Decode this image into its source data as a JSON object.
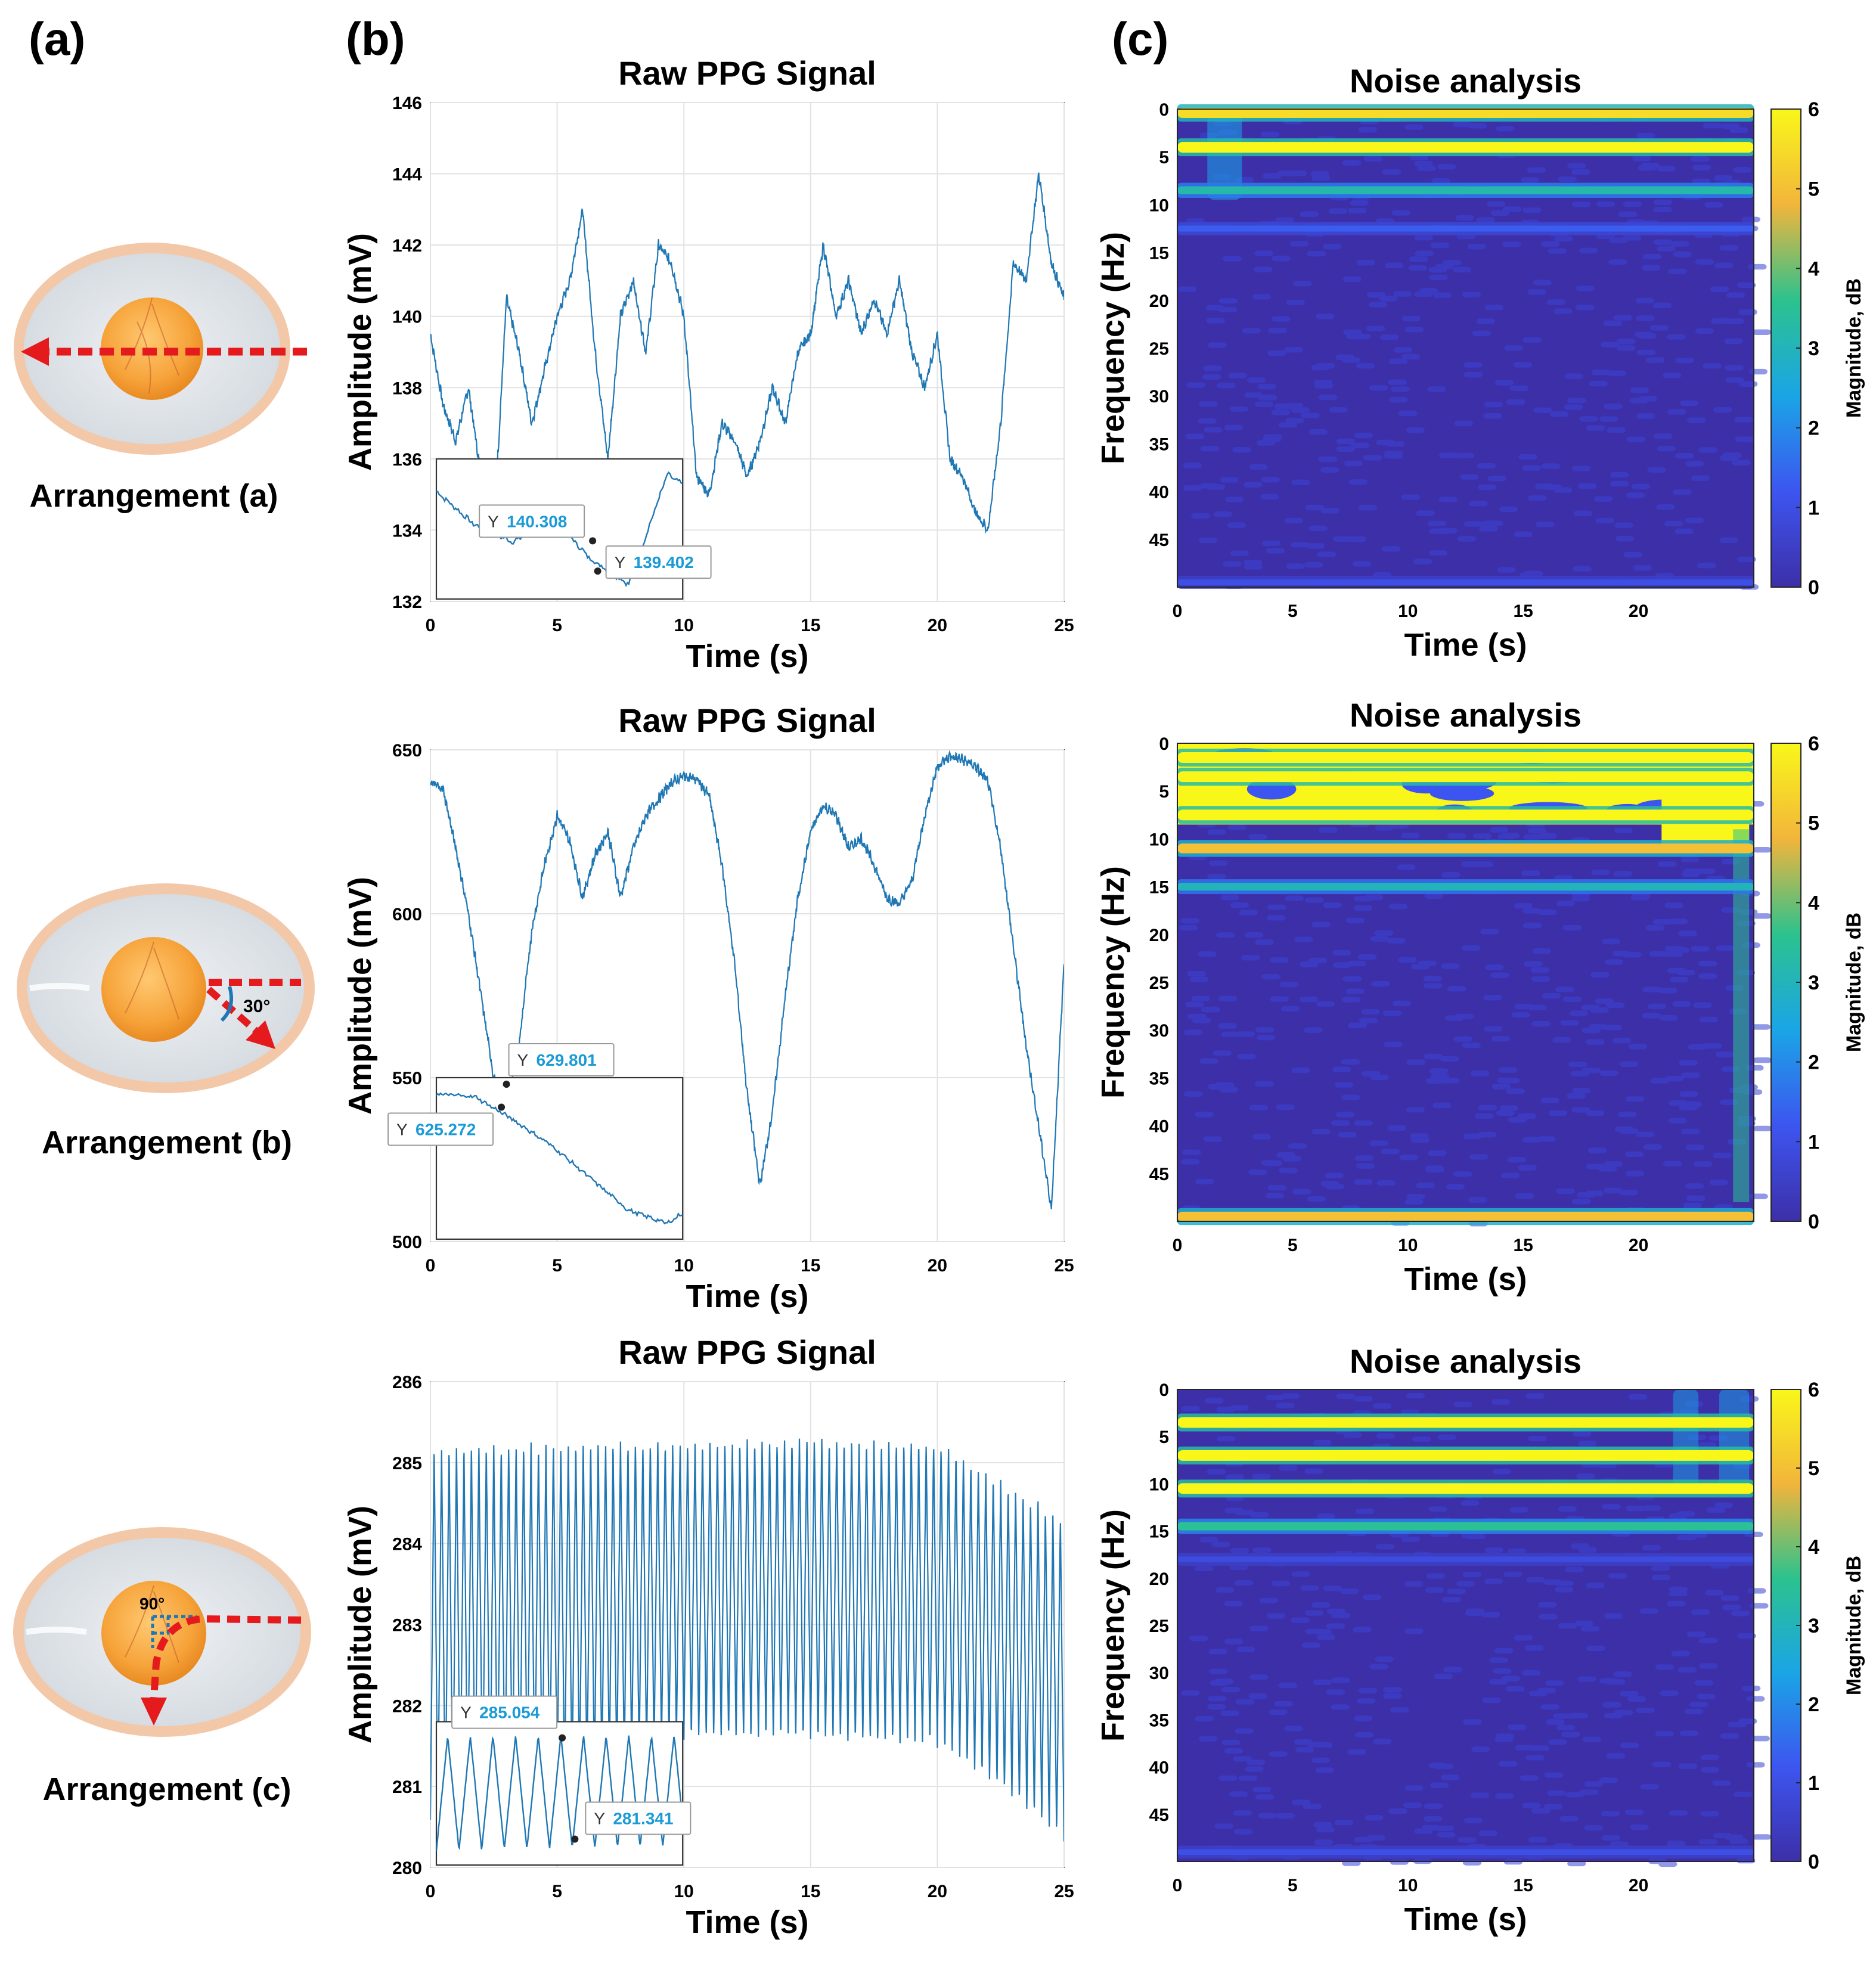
{
  "panel_labels": {
    "a": "(a)",
    "b": "(b)",
    "c": "(c)"
  },
  "arrangements": [
    {
      "label": "Arrangement (a)",
      "angle_label": ""
    },
    {
      "label": "Arrangement (b)",
      "angle_label": "30°"
    },
    {
      "label": "Arrangement (c)",
      "angle_label": "90°"
    }
  ],
  "colors": {
    "signal": "#1f77b4",
    "datatip_value": "#1a9ad6",
    "arrow": "#e41a1c",
    "spec_low": "#3d2fa8",
    "spec_high": "#f9f71a",
    "yolk": "#f6a33a",
    "shell": "#f2c8a8",
    "albumen": "#dfe3e8"
  },
  "chart_data": [
    {
      "type": "line",
      "title": "Raw PPG Signal",
      "xlabel": "Time (s)",
      "ylabel": "Amplitude (mV)",
      "xlim": [
        0,
        25
      ],
      "ylim": [
        132,
        146
      ],
      "xticks": [
        0,
        5,
        10,
        15,
        20,
        25
      ],
      "yticks": [
        132,
        134,
        136,
        138,
        140,
        142,
        144,
        146
      ],
      "grid": true,
      "series": [
        {
          "name": "PPG",
          "x": [
            0,
            0.5,
            1,
            1.5,
            2,
            2.5,
            3,
            3.5,
            4,
            4.5,
            5,
            5.5,
            6,
            6.5,
            7,
            7.5,
            8,
            8.5,
            9,
            9.5,
            10,
            10.5,
            11,
            11.5,
            12,
            12.5,
            13,
            13.5,
            14,
            14.5,
            15,
            15.5,
            16,
            16.5,
            17,
            17.5,
            18,
            18.5,
            19,
            19.5,
            20,
            20.5,
            21,
            21.5,
            22,
            22.5,
            23,
            23.5,
            24,
            24.5,
            25
          ],
          "y": [
            139.5,
            137.5,
            136.5,
            138,
            135.5,
            134,
            140.5,
            139,
            137,
            138.5,
            140,
            141,
            143,
            139,
            136,
            140,
            141,
            139,
            142,
            141.5,
            140,
            135.5,
            135,
            137,
            136.5,
            135.5,
            136.5,
            138,
            137,
            139,
            139.5,
            142,
            140,
            141,
            139.5,
            140.5,
            139.5,
            141,
            139,
            138,
            139.5,
            136,
            135.5,
            134.5,
            134,
            137,
            141.5,
            141,
            144,
            141.5,
            140.5
          ]
        }
      ],
      "inset": {
        "xlim": [
          0,
          10
        ],
        "ylim": [
          132,
          136
        ],
        "x_span_ticks": [
          0,
          10
        ]
      },
      "datatips": [
        {
          "label": "Y",
          "value": "140.308",
          "x": 6.4,
          "y": 133.7
        },
        {
          "label": "Y",
          "value": "139.402",
          "x": 6.6,
          "y": 132.85
        }
      ]
    },
    {
      "type": "line",
      "title": "Raw PPG Signal",
      "xlabel": "Time (s)",
      "ylabel": "Amplitude (mV)",
      "xlim": [
        0,
        25
      ],
      "ylim": [
        500,
        650
      ],
      "xticks": [
        0,
        5,
        10,
        15,
        20,
        25
      ],
      "yticks": [
        500,
        550,
        600,
        650
      ],
      "grid": true,
      "series": [
        {
          "name": "PPG",
          "x": [
            0,
            0.5,
            1,
            1.5,
            2,
            2.5,
            3,
            3.5,
            4,
            4.5,
            5,
            5.5,
            6,
            6.5,
            7,
            7.5,
            8,
            8.5,
            9,
            9.5,
            10,
            10.5,
            11,
            11.5,
            12,
            12.5,
            13,
            13.5,
            14,
            14.5,
            15,
            15.5,
            16,
            16.5,
            17,
            17.5,
            18,
            18.5,
            19,
            19.5,
            20,
            20.5,
            21,
            21.5,
            22,
            22.5,
            23,
            23.5,
            24,
            24.5,
            25
          ],
          "y": [
            640,
            638,
            620,
            600,
            575,
            550,
            540,
            560,
            595,
            615,
            630,
            622,
            605,
            618,
            625,
            605,
            620,
            630,
            635,
            640,
            642,
            641,
            636,
            615,
            585,
            545,
            517,
            540,
            575,
            605,
            625,
            633,
            630,
            620,
            623,
            615,
            605,
            603,
            610,
            630,
            645,
            648,
            647,
            645,
            640,
            620,
            590,
            560,
            535,
            510,
            585
          ]
        }
      ],
      "inset": {
        "xlim": [
          0,
          10
        ],
        "ylim": [
          500,
          550
        ]
      },
      "datatips": [
        {
          "label": "Y",
          "value": "629.801",
          "x": 3.0,
          "y": 548
        },
        {
          "label": "Y",
          "value": "625.272",
          "x": 2.8,
          "y": 541
        }
      ]
    },
    {
      "type": "line",
      "title": "Raw PPG Signal",
      "xlabel": "Time (s)",
      "ylabel": "Amplitude (mV)",
      "xlim": [
        0,
        25
      ],
      "ylim": [
        280,
        286
      ],
      "xticks": [
        0,
        5,
        10,
        15,
        20,
        25
      ],
      "yticks": [
        280,
        281,
        282,
        283,
        284,
        285,
        286
      ],
      "grid": true,
      "oscillation": {
        "frequency_hz": 3.4,
        "duration_s": 25
      },
      "envelope": {
        "t": [
          0,
          5,
          10,
          15,
          20,
          22,
          24,
          25
        ],
        "high": [
          285.2,
          285.25,
          285.25,
          285.3,
          285.25,
          284.9,
          284.5,
          284.3
        ],
        "low": [
          280.6,
          280.9,
          281.6,
          281.6,
          281.5,
          281.1,
          280.6,
          280.3
        ]
      },
      "inset": {
        "xlim": [
          0,
          10
        ],
        "ylim": [
          280,
          281.8
        ]
      },
      "datatips": [
        {
          "label": "Y",
          "value": "285.054",
          "x": 5.2,
          "y": 281.6
        },
        {
          "label": "Y",
          "value": "281.341",
          "x": 5.7,
          "y": 280.35
        }
      ]
    },
    {
      "type": "heatmap",
      "title": "Noise analysis",
      "xlabel": "Time (s)",
      "ylabel": "Frequency (Hz)",
      "xlim": [
        0,
        25
      ],
      "ylim": [
        0,
        50
      ],
      "xticks": [
        0,
        5,
        10,
        15,
        20
      ],
      "yticks": [
        0,
        5,
        10,
        15,
        20,
        25,
        30,
        35,
        40,
        45
      ],
      "colorbar": {
        "label": "Magnitude, dB",
        "min": 0,
        "max": 6,
        "ticks": [
          0,
          1,
          2,
          3,
          4,
          5,
          6
        ]
      },
      "bands": [
        {
          "freq_hz": 0.4,
          "magnitude_db": 5.5
        },
        {
          "freq_hz": 4,
          "magnitude_db": 6
        },
        {
          "freq_hz": 8.5,
          "magnitude_db": 3.2
        },
        {
          "freq_hz": 12.5,
          "magnitude_db": 1.3
        },
        {
          "freq_hz": 49.5,
          "magnitude_db": 1.0
        }
      ]
    },
    {
      "type": "heatmap",
      "title": "Noise analysis",
      "xlabel": "Time (s)",
      "ylabel": "Frequency (Hz)",
      "xlim": [
        0,
        25
      ],
      "ylim": [
        0,
        50
      ],
      "xticks": [
        0,
        5,
        10,
        15,
        20
      ],
      "yticks": [
        0,
        5,
        10,
        15,
        20,
        25,
        30,
        35,
        40,
        45
      ],
      "colorbar": {
        "label": "Magnitude, dB",
        "min": 0,
        "max": 6,
        "ticks": [
          0,
          1,
          2,
          3,
          4,
          5,
          6
        ]
      },
      "bands": [
        {
          "freq_hz": 1.5,
          "magnitude_db": 6
        },
        {
          "freq_hz": 3.5,
          "magnitude_db": 6
        },
        {
          "freq_hz": 7.5,
          "magnitude_db": 6
        },
        {
          "freq_hz": 11,
          "magnitude_db": 5
        },
        {
          "freq_hz": 15,
          "magnitude_db": 3
        },
        {
          "freq_hz": 49.5,
          "magnitude_db": 5
        }
      ]
    },
    {
      "type": "heatmap",
      "title": "Noise analysis",
      "xlabel": "Time (s)",
      "ylabel": "Frequency (Hz)",
      "xlim": [
        0,
        25
      ],
      "ylim": [
        0,
        50
      ],
      "xticks": [
        0,
        5,
        10,
        15,
        20
      ],
      "yticks": [
        0,
        5,
        10,
        15,
        20,
        25,
        30,
        35,
        40,
        45
      ],
      "colorbar": {
        "label": "Magnitude, dB",
        "min": 0,
        "max": 6,
        "ticks": [
          0,
          1,
          2,
          3,
          4,
          5,
          6
        ]
      },
      "bands": [
        {
          "freq_hz": 3.5,
          "magnitude_db": 6
        },
        {
          "freq_hz": 7,
          "magnitude_db": 6
        },
        {
          "freq_hz": 10.5,
          "magnitude_db": 6
        },
        {
          "freq_hz": 14.5,
          "magnitude_db": 3.5
        },
        {
          "freq_hz": 18,
          "magnitude_db": 0.9
        },
        {
          "freq_hz": 49,
          "magnitude_db": 1.0
        }
      ]
    }
  ]
}
